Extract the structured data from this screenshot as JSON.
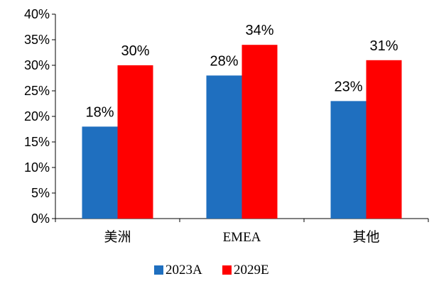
{
  "chart_data": {
    "type": "bar",
    "categories": [
      "美洲",
      "EMEA",
      "其他"
    ],
    "series": [
      {
        "name": "2023A",
        "values": [
          18,
          28,
          23
        ],
        "color": "#1F6FBF",
        "labels": [
          "18%",
          "28%",
          "23%"
        ]
      },
      {
        "name": "2029E",
        "values": [
          30,
          34,
          31
        ],
        "color": "#FF0000",
        "labels": [
          "30%",
          "34%",
          "31%"
        ]
      }
    ],
    "ylim": [
      0,
      40
    ],
    "yticks": [
      0,
      5,
      10,
      15,
      20,
      25,
      30,
      35,
      40
    ],
    "ytick_labels": [
      "0%",
      "5%",
      "10%",
      "15%",
      "20%",
      "25%",
      "30%",
      "35%",
      "40%"
    ],
    "legend_position": "bottom",
    "grid": false
  }
}
